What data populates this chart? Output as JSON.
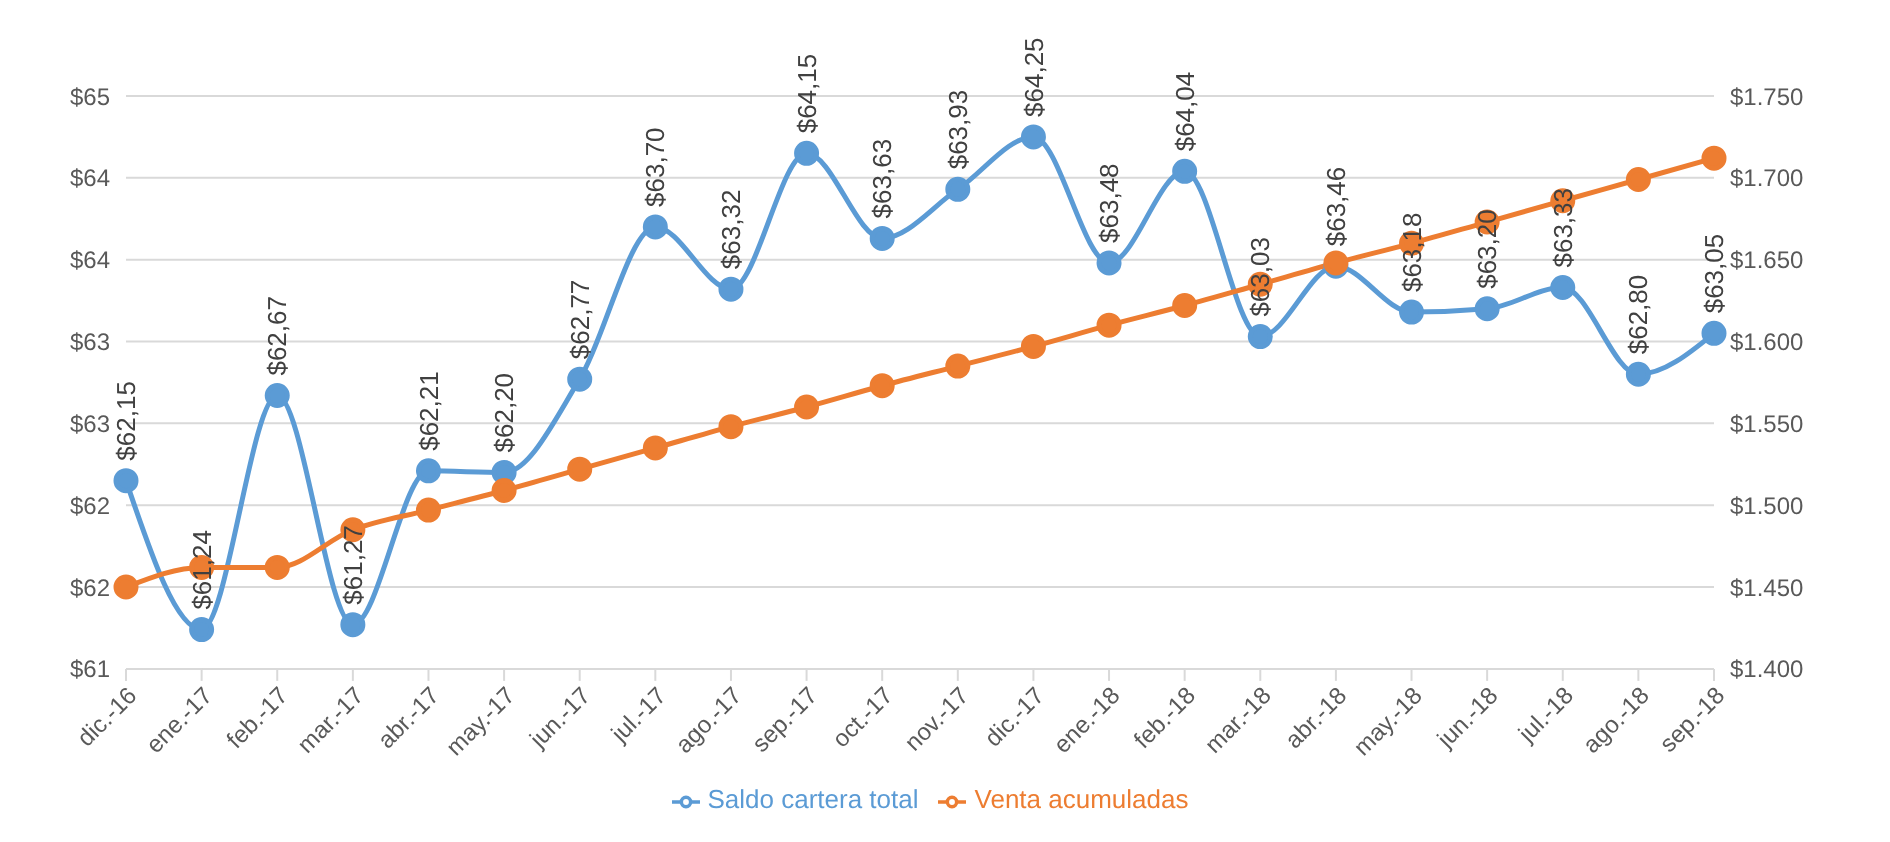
{
  "chart_data": {
    "type": "line",
    "categories": [
      "dic.-16",
      "ene.-17",
      "feb.-17",
      "mar.-17",
      "abr.-17",
      "may.-17",
      "jun.-17",
      "jul.-17",
      "ago.-17",
      "sep.-17",
      "oct.-17",
      "nov.-17",
      "dic.-17",
      "ene.-18",
      "feb.-18",
      "mar.-18",
      "abr.-18",
      "may.-18",
      "jun.-18",
      "jul.-18",
      "ago.-18",
      "sep.-18"
    ],
    "series": [
      {
        "name": "Saldo cartera total",
        "color": "#5b9bd5",
        "values": [
          62.15,
          61.24,
          62.67,
          61.27,
          62.21,
          62.2,
          62.77,
          63.7,
          63.32,
          64.15,
          63.63,
          63.93,
          64.25,
          63.48,
          64.04,
          63.03,
          63.46,
          63.18,
          63.2,
          63.33,
          62.8,
          63.05
        ],
        "value_labels": [
          "$62,15",
          "$61,24",
          "$62,67",
          "$61,27",
          "$62,21",
          "$62,20",
          "$62,77",
          "$63,70",
          "$63,32",
          "$64,15",
          "$63,63",
          "$63,93",
          "$64,25",
          "$63,48",
          "$64,04",
          "$63,03",
          "$63,46",
          "$63,18",
          "$63,20",
          "$63,33",
          "$62,80",
          "$63,05"
        ]
      },
      {
        "name": "Venta acumuladas",
        "color": "#ed7d31",
        "axis": "y2",
        "values": [
          1450,
          1462,
          1462,
          1485,
          1497,
          1509,
          1522,
          1535,
          1548,
          1560,
          1573,
          1585,
          1597,
          1610,
          1622,
          1635,
          1648,
          1660,
          1673,
          1686,
          1699,
          1712
        ]
      }
    ],
    "ylim": [
      61,
      64.5
    ],
    "yticks": [
      {
        "value": 61,
        "label": "$61"
      },
      {
        "value": 61.5,
        "label": "$62"
      },
      {
        "value": 62,
        "label": "$62"
      },
      {
        "value": 62.5,
        "label": "$63"
      },
      {
        "value": 63,
        "label": "$63"
      },
      {
        "value": 63.5,
        "label": "$64"
      },
      {
        "value": 64,
        "label": "$64"
      },
      {
        "value": 64.5,
        "label": "$65"
      }
    ],
    "y2lim": [
      1400,
      1750
    ],
    "y2ticks": [
      {
        "value": 1400,
        "label": "$1.400"
      },
      {
        "value": 1450,
        "label": "$1.450"
      },
      {
        "value": 1500,
        "label": "$1.500"
      },
      {
        "value": 1550,
        "label": "$1.550"
      },
      {
        "value": 1600,
        "label": "$1.600"
      },
      {
        "value": 1650,
        "label": "$1.650"
      },
      {
        "value": 1700,
        "label": "$1.700"
      },
      {
        "value": 1750,
        "label": "$1.750"
      }
    ],
    "grid": "y",
    "legend": "bottom",
    "marker": "circle",
    "line_style": "solid"
  }
}
